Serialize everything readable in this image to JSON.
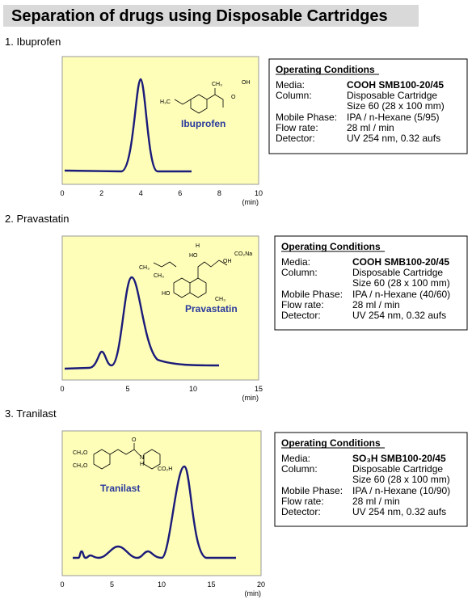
{
  "title": "Separation of drugs using Disposable Cartridges",
  "sections": [
    {
      "heading": "1.  Ibuprofen",
      "compound": "Ibuprofen",
      "ticks": [
        0,
        2,
        4,
        6,
        8,
        10
      ],
      "unit": "(min)",
      "structure_labels": [
        "CH₃",
        "OH",
        "O",
        "H₃C"
      ],
      "conditions": {
        "title": "Operating Conditions",
        "media_label": "Media:",
        "media_phase": "COOH",
        "media_product": "SMB100-20/45",
        "column_label": "Column:",
        "column_lines": [
          "Disposable Cartridge",
          "Size 60 (28 x 100 mm)"
        ],
        "mobile_label": "Mobile Phase:",
        "mobile_value": "IPA / n-Hexane (5/95)",
        "flow_label": "Flow rate:",
        "flow_value": "28 ml / min",
        "detector_label": "Detector:",
        "detector_value": "UV 254 nm, 0.32 aufs"
      }
    },
    {
      "heading": "2.  Pravastatin",
      "compound": "Pravastatin",
      "ticks": [
        0,
        5,
        10,
        15
      ],
      "unit": "(min)",
      "structure_labels": [
        "HO",
        "H",
        "CO₂Na",
        "OH",
        "CH₃",
        "CH₃",
        "HO",
        "CH₃"
      ],
      "conditions": {
        "title": "Operating Conditions",
        "media_label": "Media:",
        "media_phase": "COOH",
        "media_product": "SMB100-20/45",
        "column_label": "Column:",
        "column_lines": [
          "Disposable Cartridge",
          "Size 60 (28 x 100 mm)"
        ],
        "mobile_label": "Mobile Phase:",
        "mobile_value": "IPA / n-Hexane (40/60)",
        "flow_label": "Flow rate:",
        "flow_value": "28 ml / min",
        "detector_label": "Detector:",
        "detector_value": "UV 254 nm, 0.32 aufs"
      }
    },
    {
      "heading": "3.  Tranilast",
      "compound": "Tranilast",
      "ticks": [
        0,
        5,
        10,
        15,
        20
      ],
      "unit": "(min)",
      "structure_labels": [
        "CH₃O",
        "CH₃O",
        "O",
        "N",
        "H",
        "CO₂H"
      ],
      "conditions": {
        "title": "Operating Conditions",
        "media_label": "Media:",
        "media_phase": "SO₃H",
        "media_product": "SMB100-20/45",
        "column_label": "Column:",
        "column_lines": [
          "Disposable Cartridge",
          "Size 60 (28 x 100 mm)"
        ],
        "mobile_label": "Mobile Phase:",
        "mobile_value": "IPA / n-Hexane (10/90)",
        "flow_label": "Flow rate:",
        "flow_value": "28 ml / min",
        "detector_label": "Detector:",
        "detector_value": "UV 254 nm, 0.32 aufs"
      }
    }
  ]
}
